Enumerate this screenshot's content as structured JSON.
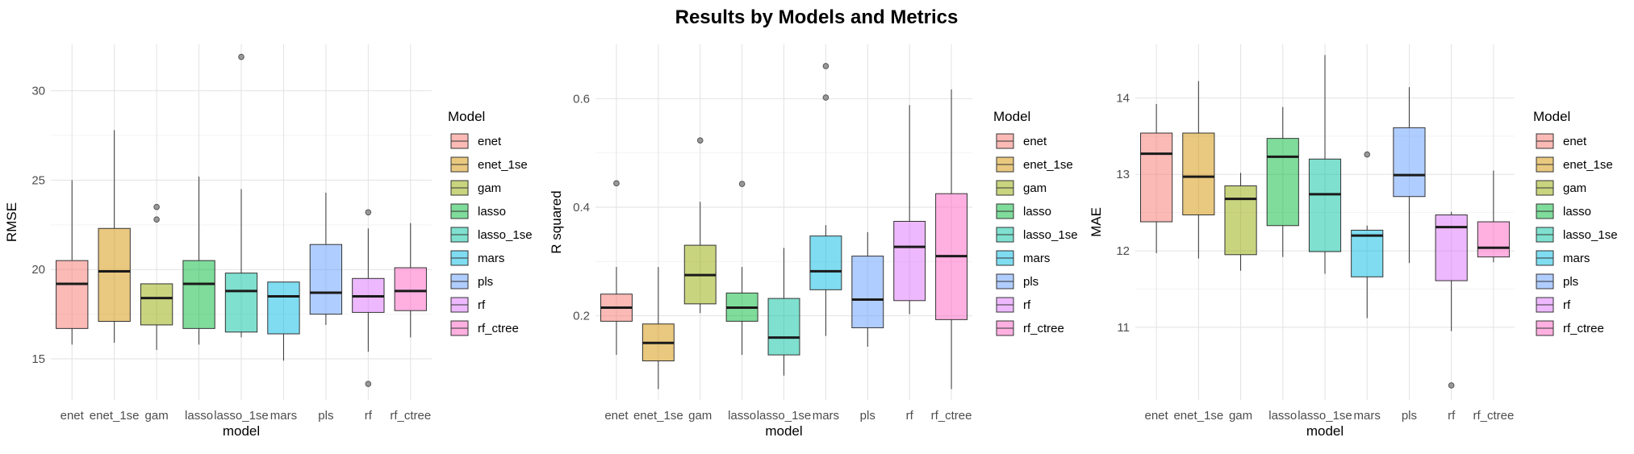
{
  "title": "Results by Models and Metrics",
  "models": [
    "enet",
    "enet_1se",
    "gam",
    "lasso",
    "lasso_1se",
    "mars",
    "pls",
    "rf",
    "rf_ctree"
  ],
  "colors": {
    "enet": "#F8766D",
    "enet_1se": "#D39200",
    "gam": "#93AA00",
    "lasso": "#00BA38",
    "lasso_1se": "#00C19F",
    "mars": "#00B9E3",
    "pls": "#619CFF",
    "rf": "#DB72FB",
    "rf_ctree": "#FF61C3"
  },
  "chart_data": [
    {
      "type": "boxplot",
      "metric": "RMSE",
      "xlabel": "model",
      "ylabel": "RMSE",
      "ylim": [
        12.7,
        32.6
      ],
      "yticks": [
        15,
        20,
        25,
        30
      ],
      "grid": true,
      "legend_title": "Model",
      "legend_position": "right",
      "categories": [
        "enet",
        "enet_1se",
        "gam",
        "lasso",
        "lasso_1se",
        "mars",
        "pls",
        "rf",
        "rf_ctree"
      ],
      "boxes": [
        {
          "model": "enet",
          "min": 15.8,
          "q1": 16.7,
          "median": 19.2,
          "q3": 20.5,
          "max": 25.0,
          "outliers": []
        },
        {
          "model": "enet_1se",
          "min": 15.9,
          "q1": 17.1,
          "median": 19.9,
          "q3": 22.3,
          "max": 27.8,
          "outliers": []
        },
        {
          "model": "gam",
          "min": 15.5,
          "q1": 16.9,
          "median": 18.4,
          "q3": 19.2,
          "max": 19.2,
          "outliers": [
            23.5,
            22.8
          ]
        },
        {
          "model": "lasso",
          "min": 15.8,
          "q1": 16.7,
          "median": 19.2,
          "q3": 20.5,
          "max": 25.2,
          "outliers": []
        },
        {
          "model": "lasso_1se",
          "min": 16.2,
          "q1": 16.5,
          "median": 18.8,
          "q3": 19.8,
          "max": 24.5,
          "outliers": [
            31.9
          ]
        },
        {
          "model": "mars",
          "min": 14.9,
          "q1": 16.4,
          "median": 18.5,
          "q3": 19.3,
          "max": 19.3,
          "outliers": []
        },
        {
          "model": "pls",
          "min": 16.9,
          "q1": 17.5,
          "median": 18.7,
          "q3": 21.4,
          "max": 24.3,
          "outliers": []
        },
        {
          "model": "rf",
          "min": 15.4,
          "q1": 17.6,
          "median": 18.5,
          "q3": 19.5,
          "max": 22.3,
          "outliers": [
            23.2,
            13.6
          ]
        },
        {
          "model": "rf_ctree",
          "min": 16.2,
          "q1": 17.7,
          "median": 18.8,
          "q3": 20.1,
          "max": 22.6,
          "outliers": []
        }
      ]
    },
    {
      "type": "boxplot",
      "metric": "R squared",
      "xlabel": "model",
      "ylabel": "R squared",
      "ylim": [
        0.045,
        0.7
      ],
      "yticks": [
        0.2,
        0.4,
        0.6
      ],
      "grid": true,
      "legend_title": "Model",
      "legend_position": "right",
      "categories": [
        "enet",
        "enet_1se",
        "gam",
        "lasso",
        "lasso_1se",
        "mars",
        "pls",
        "rf",
        "rf_ctree"
      ],
      "boxes": [
        {
          "model": "enet",
          "min": 0.128,
          "q1": 0.19,
          "median": 0.215,
          "q3": 0.24,
          "max": 0.29,
          "outliers": [
            0.444
          ]
        },
        {
          "model": "enet_1se",
          "min": 0.065,
          "q1": 0.117,
          "median": 0.15,
          "q3": 0.185,
          "max": 0.29,
          "outliers": []
        },
        {
          "model": "gam",
          "min": 0.205,
          "q1": 0.222,
          "median": 0.275,
          "q3": 0.33,
          "max": 0.41,
          "outliers": [
            0.523
          ]
        },
        {
          "model": "lasso",
          "min": 0.128,
          "q1": 0.19,
          "median": 0.215,
          "q3": 0.242,
          "max": 0.29,
          "outliers": [
            0.443
          ]
        },
        {
          "model": "lasso_1se",
          "min": 0.09,
          "q1": 0.128,
          "median": 0.16,
          "q3": 0.232,
          "max": 0.325,
          "outliers": []
        },
        {
          "model": "mars",
          "min": 0.163,
          "q1": 0.248,
          "median": 0.282,
          "q3": 0.347,
          "max": 0.367,
          "outliers": [
            0.66,
            0.602
          ]
        },
        {
          "model": "pls",
          "min": 0.143,
          "q1": 0.178,
          "median": 0.23,
          "q3": 0.31,
          "max": 0.354,
          "outliers": []
        },
        {
          "model": "rf",
          "min": 0.203,
          "q1": 0.228,
          "median": 0.327,
          "q3": 0.374,
          "max": 0.588,
          "outliers": []
        },
        {
          "model": "rf_ctree",
          "min": 0.065,
          "q1": 0.193,
          "median": 0.31,
          "q3": 0.425,
          "max": 0.617,
          "outliers": []
        }
      ]
    },
    {
      "type": "boxplot",
      "metric": "MAE",
      "xlabel": "model",
      "ylabel": "MAE",
      "ylim": [
        10.05,
        14.7
      ],
      "yticks": [
        11,
        12,
        13,
        14
      ],
      "grid": true,
      "legend_title": "Model",
      "legend_position": "right",
      "categories": [
        "enet",
        "enet_1se",
        "gam",
        "lasso",
        "lasso_1se",
        "mars",
        "pls",
        "rf",
        "rf_ctree"
      ],
      "boxes": [
        {
          "model": "enet",
          "min": 11.97,
          "q1": 12.38,
          "median": 13.27,
          "q3": 13.54,
          "max": 13.92,
          "outliers": []
        },
        {
          "model": "enet_1se",
          "min": 11.9,
          "q1": 12.47,
          "median": 12.97,
          "q3": 13.54,
          "max": 14.22,
          "outliers": []
        },
        {
          "model": "gam",
          "min": 11.74,
          "q1": 11.95,
          "median": 12.68,
          "q3": 12.85,
          "max": 13.02,
          "outliers": []
        },
        {
          "model": "lasso",
          "min": 11.92,
          "q1": 12.33,
          "median": 13.23,
          "q3": 13.47,
          "max": 13.88,
          "outliers": []
        },
        {
          "model": "lasso_1se",
          "min": 11.7,
          "q1": 11.99,
          "median": 12.74,
          "q3": 13.2,
          "max": 14.56,
          "outliers": []
        },
        {
          "model": "mars",
          "min": 11.12,
          "q1": 11.66,
          "median": 12.2,
          "q3": 12.27,
          "max": 12.33,
          "outliers": [
            13.26
          ]
        },
        {
          "model": "pls",
          "min": 11.84,
          "q1": 12.71,
          "median": 12.99,
          "q3": 13.61,
          "max": 14.14,
          "outliers": []
        },
        {
          "model": "rf",
          "min": 10.95,
          "q1": 11.61,
          "median": 12.31,
          "q3": 12.47,
          "max": 12.51,
          "outliers": [
            10.24
          ]
        },
        {
          "model": "rf_ctree",
          "min": 11.85,
          "q1": 11.92,
          "median": 12.04,
          "q3": 12.38,
          "max": 13.05,
          "outliers": []
        }
      ]
    }
  ]
}
